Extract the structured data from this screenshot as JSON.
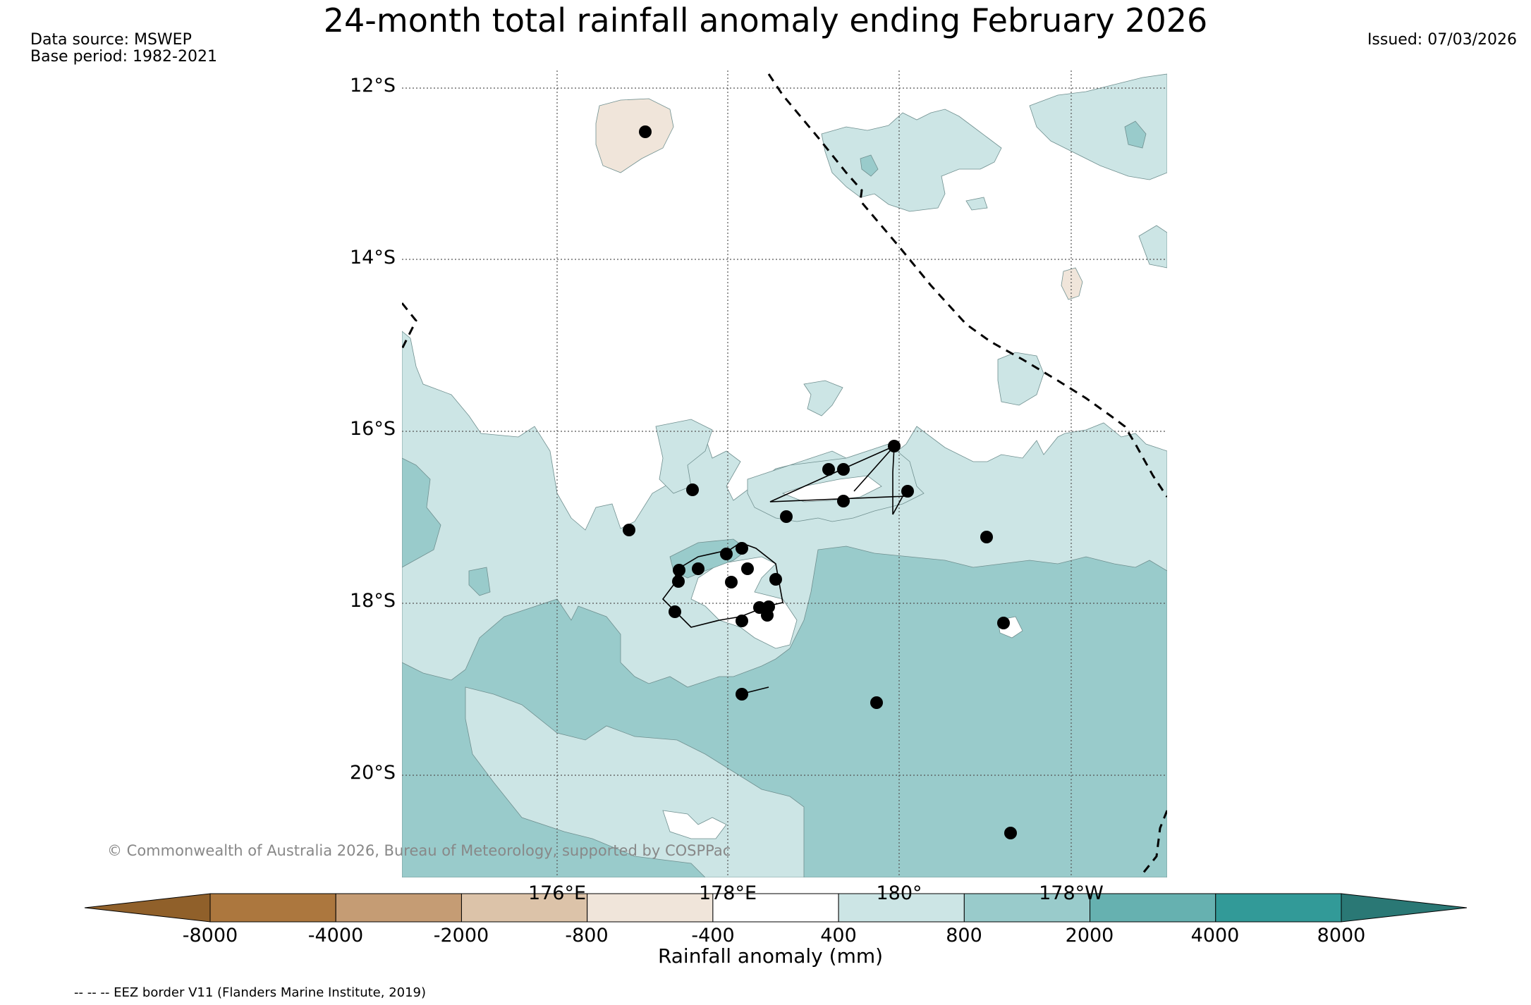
{
  "title": "24-month total rainfall anomaly ending February 2026",
  "data_source": "Data source: MSWEP",
  "base_period": "Base period: 1982-2021",
  "issued": "Issued: 07/03/2026",
  "map": {
    "lat_labels": [
      "12°S",
      "14°S",
      "16°S",
      "18°S",
      "20°S"
    ],
    "lon_labels": [
      "176°E",
      "178°E",
      "180°",
      "178°W"
    ],
    "copyright": "© Commonwealth of Australia 2026, Bureau of Meteorology, supported by COSPPac",
    "stations": 30
  },
  "colorbar": {
    "label": "Rainfall anomaly (mm)",
    "ticks": [
      "-8000",
      "-4000",
      "-2000",
      "-800",
      "-400",
      "400",
      "800",
      "2000",
      "4000",
      "8000"
    ],
    "colors": [
      "#90602a",
      "#ac773e",
      "#c59c74",
      "#dcc3a9",
      "#f0e5da",
      "#ffffff",
      "#cce5e5",
      "#99cbcb",
      "#66b1b0",
      "#329a98",
      "#2a7875"
    ]
  },
  "footnote": "-- -- -- EEZ border V11 (Flanders Marine Institute, 2019)"
}
